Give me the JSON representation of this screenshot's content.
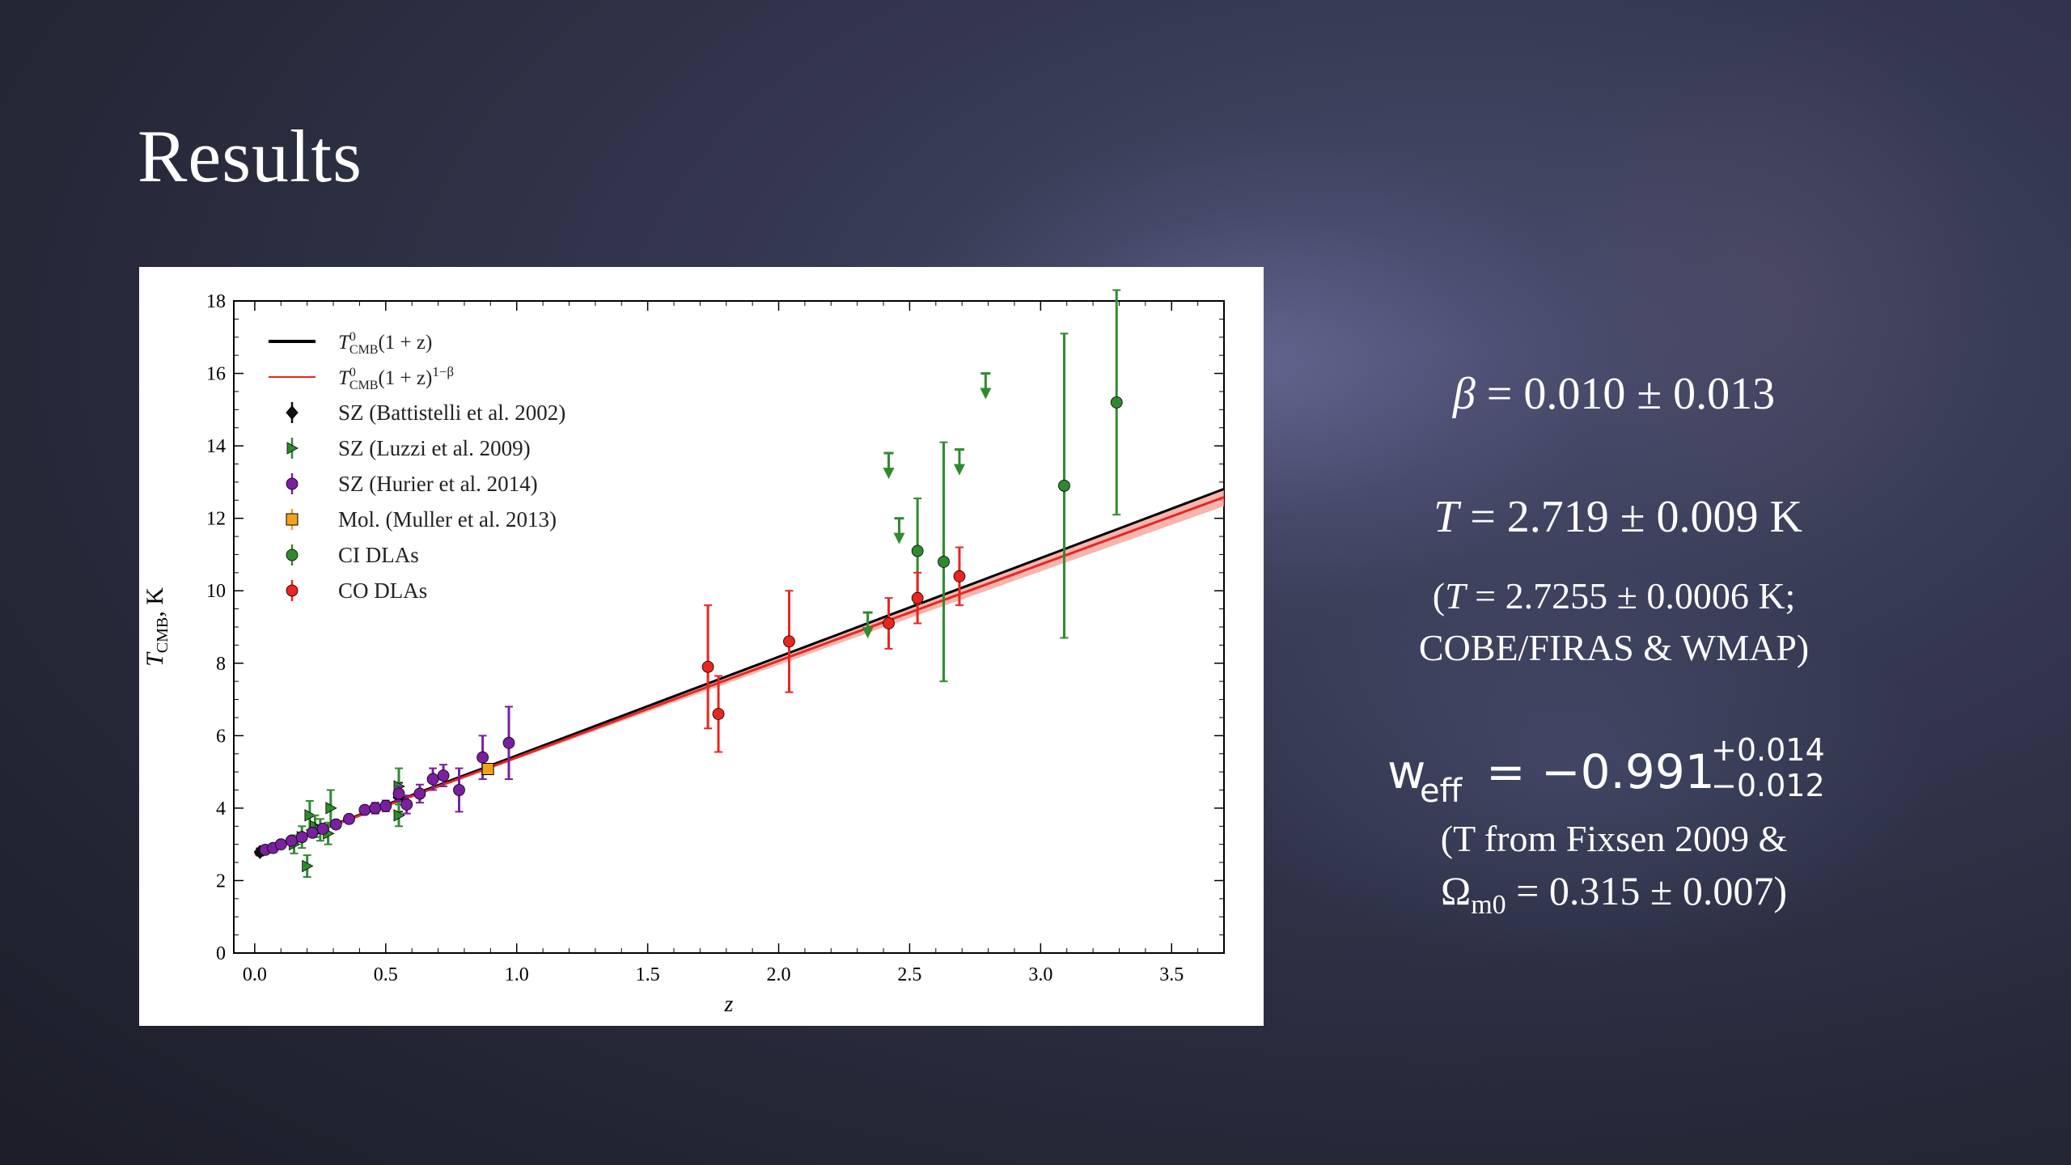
{
  "slide": {
    "title": "Results"
  },
  "results": {
    "beta": {
      "symbol": "β",
      "value": "0.010",
      "err": "0.013"
    },
    "temperature": {
      "symbol": "T",
      "value": "2.719",
      "err": "0.009",
      "unit": "K"
    },
    "temperature_note": {
      "line1_symbol": "T",
      "line1_value": "2.7255",
      "line1_err": "0.0006",
      "line1_unit": "K;",
      "line2": "COBE/FIRAS & WMAP)"
    },
    "w_eff": {
      "base": "w",
      "sub": "eff",
      "value": "−0.991",
      "err_up": "+0.014",
      "err_down": "−0.012"
    },
    "w_note": {
      "line1": "(T from Fixsen 2009 &",
      "omega_symbol": "Ω",
      "omega_sub": "m0",
      "omega_value": "0.315",
      "omega_err": "0.007"
    }
  },
  "colors": {
    "model": "#000000",
    "model_beta": "#e8261f",
    "battistelli": "#111111",
    "luzzi": "#2f8a2f",
    "hurier": "#7a1fa0",
    "muller": "#f2a21a",
    "ci": "#2f8a2f",
    "co": "#e8261f"
  },
  "chart_data": {
    "type": "scatter",
    "xlabel": "z",
    "ylabel": "T_CMB, K",
    "xlim": [
      -0.08,
      3.7
    ],
    "ylim": [
      0,
      18
    ],
    "xticks": [
      "0.0",
      "0.5",
      "1.0",
      "1.5",
      "2.0",
      "2.5",
      "3.0",
      "3.5"
    ],
    "yticks": [
      "0",
      "2",
      "4",
      "6",
      "8",
      "10",
      "12",
      "14",
      "16",
      "18"
    ],
    "grid": false,
    "legend_position": "top-left",
    "legend": [
      {
        "label": "T⁰CMB(1 + z)",
        "kind": "line",
        "color": "#000000"
      },
      {
        "label": "T⁰CMB(1 + z)1−β",
        "kind": "line-thin",
        "color": "#e8261f"
      },
      {
        "label": "SZ (Battistelli et al. 2002)",
        "kind": "diamond",
        "color": "#111111"
      },
      {
        "label": "SZ (Luzzi et al. 2009)",
        "kind": "tri",
        "color": "#2f8a2f"
      },
      {
        "label": "SZ (Hurier et al. 2014)",
        "kind": "circle",
        "color": "#7a1fa0"
      },
      {
        "label": "Mol. (Muller et al. 2013)",
        "kind": "square",
        "color": "#f2a21a"
      },
      {
        "label": "CI DLAs",
        "kind": "circle",
        "color": "#2f8a2f"
      },
      {
        "label": "CO DLAs",
        "kind": "circle",
        "color": "#e8261f"
      }
    ],
    "models": [
      {
        "name": "T⁰CMB(1 + z)",
        "T0": 2.7255,
        "beta": 0.0
      },
      {
        "name": "T⁰CMB(1 + z)1−β",
        "T0": 2.719,
        "beta": 0.01
      }
    ],
    "series": [
      {
        "name": "SZ (Battistelli et al. 2002)",
        "marker": "diamond",
        "points": [
          {
            "x": 0.02,
            "y": 2.79,
            "e": 0.1
          },
          {
            "x": 0.55,
            "y": 4.3,
            "e": 0.4
          }
        ]
      },
      {
        "name": "SZ (Luzzi et al. 2009)",
        "marker": "tri",
        "points": [
          {
            "x": 0.15,
            "y": 3.0,
            "e": 0.25
          },
          {
            "x": 0.18,
            "y": 3.2,
            "e": 0.3
          },
          {
            "x": 0.2,
            "y": 2.4,
            "e": 0.3
          },
          {
            "x": 0.21,
            "y": 3.8,
            "e": 0.4
          },
          {
            "x": 0.23,
            "y": 3.5,
            "e": 0.3
          },
          {
            "x": 0.25,
            "y": 3.4,
            "e": 0.3
          },
          {
            "x": 0.28,
            "y": 3.3,
            "e": 0.3
          },
          {
            "x": 0.29,
            "y": 4.0,
            "e": 0.5
          },
          {
            "x": 0.55,
            "y": 3.8,
            "e": 0.3
          },
          {
            "x": 0.55,
            "y": 4.6,
            "e": 0.5
          }
        ]
      },
      {
        "name": "SZ (Hurier et al. 2014)",
        "marker": "circle",
        "points": [
          {
            "x": 0.04,
            "y": 2.85,
            "e": 0.05
          },
          {
            "x": 0.07,
            "y": 2.9,
            "e": 0.05
          },
          {
            "x": 0.1,
            "y": 3.0,
            "e": 0.05
          },
          {
            "x": 0.14,
            "y": 3.1,
            "e": 0.06
          },
          {
            "x": 0.18,
            "y": 3.2,
            "e": 0.06
          },
          {
            "x": 0.22,
            "y": 3.32,
            "e": 0.07
          },
          {
            "x": 0.26,
            "y": 3.43,
            "e": 0.08
          },
          {
            "x": 0.31,
            "y": 3.55,
            "e": 0.09
          },
          {
            "x": 0.36,
            "y": 3.7,
            "e": 0.1
          },
          {
            "x": 0.42,
            "y": 3.95,
            "e": 0.1
          },
          {
            "x": 0.46,
            "y": 4.0,
            "e": 0.15
          },
          {
            "x": 0.5,
            "y": 4.06,
            "e": 0.15
          },
          {
            "x": 0.55,
            "y": 4.4,
            "e": 0.2
          },
          {
            "x": 0.58,
            "y": 4.1,
            "e": 0.25
          },
          {
            "x": 0.63,
            "y": 4.4,
            "e": 0.25
          },
          {
            "x": 0.68,
            "y": 4.8,
            "e": 0.3
          },
          {
            "x": 0.72,
            "y": 4.9,
            "e": 0.3
          },
          {
            "x": 0.78,
            "y": 4.5,
            "e": 0.6
          },
          {
            "x": 0.87,
            "y": 5.4,
            "e": 0.6
          },
          {
            "x": 0.97,
            "y": 5.8,
            "e": 1.0
          }
        ]
      },
      {
        "name": "Mol. (Muller et al. 2013)",
        "marker": "square",
        "points": [
          {
            "x": 0.89,
            "y": 5.08,
            "e": 0.1
          }
        ]
      },
      {
        "name": "CI DLAs",
        "marker": "circle",
        "points": [
          {
            "x": 2.34,
            "y": 9.4,
            "e": 0,
            "upper": true
          },
          {
            "x": 2.42,
            "y": 13.8,
            "e": 0,
            "upper": true
          },
          {
            "x": 2.46,
            "y": 12.0,
            "e": 0,
            "upper": true
          },
          {
            "x": 2.53,
            "y": 11.1,
            "e": 1.45
          },
          {
            "x": 2.63,
            "y": 10.8,
            "e": 3.3
          },
          {
            "x": 2.69,
            "y": 13.9,
            "e": 0,
            "upper": true
          },
          {
            "x": 2.79,
            "y": 16.0,
            "e": 0,
            "upper": true
          },
          {
            "x": 3.09,
            "y": 12.9,
            "e": 4.2
          },
          {
            "x": 3.29,
            "y": 15.2,
            "e": 3.1
          }
        ]
      },
      {
        "name": "CO DLAs",
        "marker": "circle",
        "points": [
          {
            "x": 1.73,
            "y": 7.9,
            "e": 1.7
          },
          {
            "x": 1.77,
            "y": 6.6,
            "e": 1.05
          },
          {
            "x": 2.04,
            "y": 8.6,
            "e": 1.4
          },
          {
            "x": 2.42,
            "y": 9.1,
            "e": 0.7
          },
          {
            "x": 2.53,
            "y": 9.8,
            "e": 0.7
          },
          {
            "x": 2.69,
            "y": 10.4,
            "e": 0.8
          }
        ]
      }
    ]
  }
}
